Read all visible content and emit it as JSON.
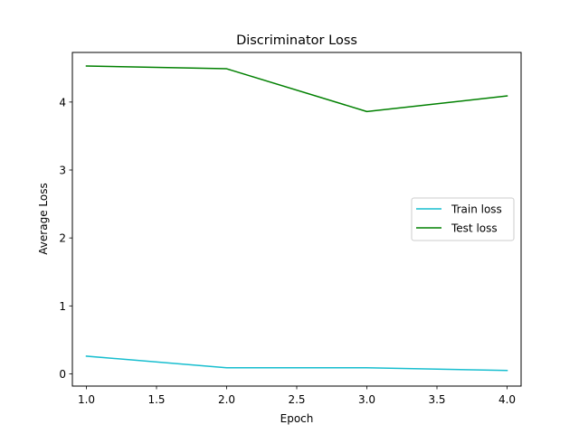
{
  "chart_data": {
    "type": "line",
    "title": "Discriminator Loss",
    "xlabel": "Epoch",
    "ylabel": "Average Loss",
    "x": [
      1.0,
      2.0,
      3.0,
      4.0
    ],
    "series": [
      {
        "name": "Train loss",
        "color": "#17becf",
        "values": [
          0.26,
          0.09,
          0.09,
          0.05
        ]
      },
      {
        "name": "Test loss",
        "color": "#008000",
        "values": [
          4.53,
          4.49,
          3.86,
          4.09
        ]
      }
    ],
    "xlim": [
      0.9,
      4.1
    ],
    "ylim": [
      -0.18,
      4.73
    ],
    "xticks": [
      1.0,
      1.5,
      2.0,
      2.5,
      3.0,
      3.5,
      4.0
    ],
    "xtick_labels": [
      "1.0",
      "1.5",
      "2.0",
      "2.5",
      "3.0",
      "3.5",
      "4.0"
    ],
    "yticks": [
      0,
      1,
      2,
      3,
      4
    ],
    "ytick_labels": [
      "0",
      "1",
      "2",
      "3",
      "4"
    ],
    "grid": false,
    "legend_position": "center-right"
  }
}
